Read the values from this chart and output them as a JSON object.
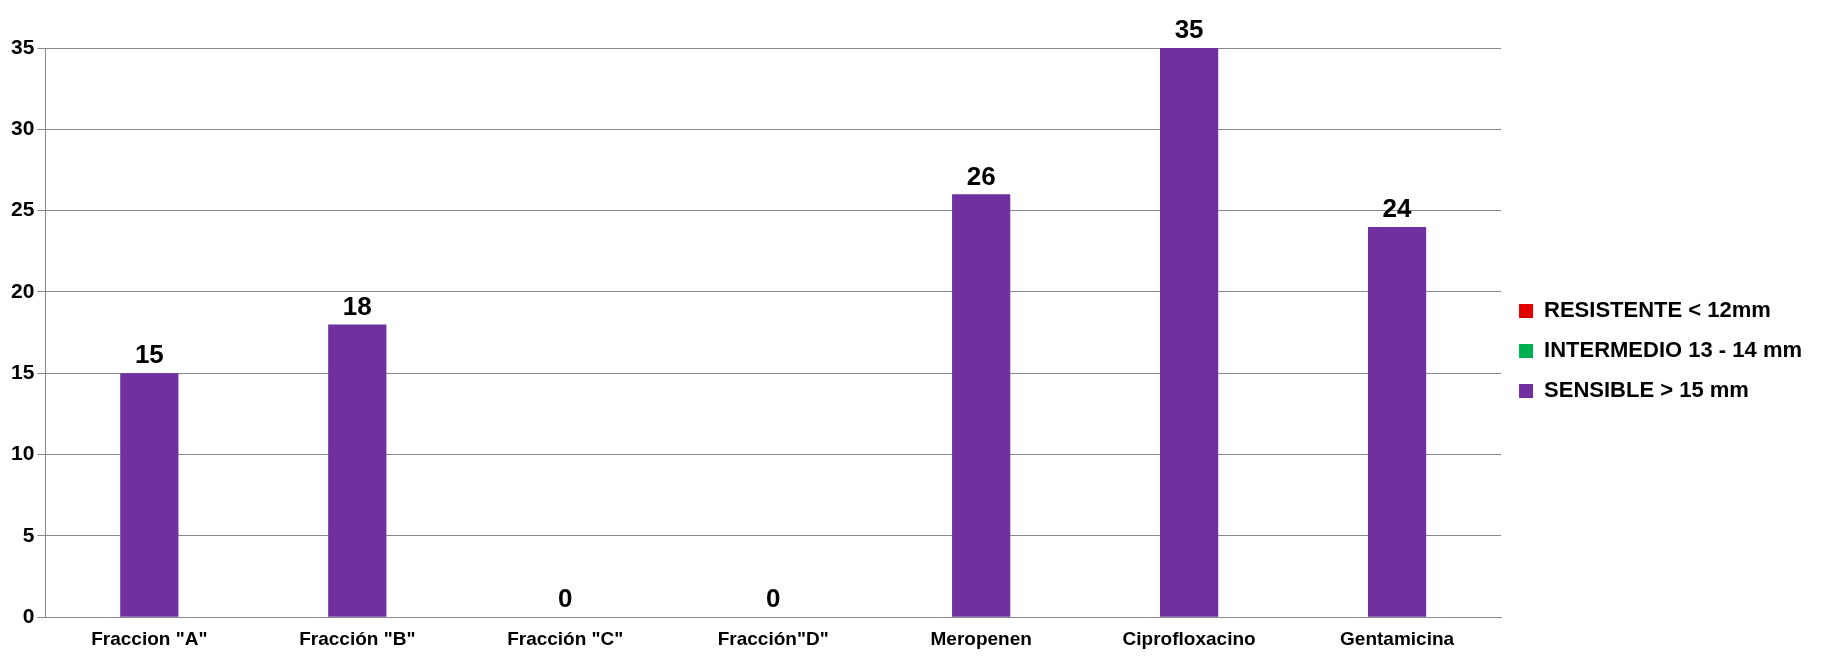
{
  "chart_data": {
    "type": "bar",
    "stacked": true,
    "categories": [
      "Fraccion \"A\"",
      "Fracción \"B\"",
      "Fracción \"C\"",
      "Fracción\"D\"",
      "Meropenen",
      "Ciprofloxacino",
      "Gentamicina"
    ],
    "series": [
      {
        "name": "RESISTENTE < 12mm",
        "color": "#e00000",
        "values": [
          null,
          null,
          0,
          0,
          null,
          null,
          null
        ]
      },
      {
        "name": "INTERMEDIO 13 - 14 mm",
        "color": "#00b050",
        "values": [
          null,
          null,
          null,
          null,
          null,
          null,
          null
        ]
      },
      {
        "name": "SENSIBLE > 15 mm",
        "color": "#7030a0",
        "values": [
          15,
          18,
          null,
          null,
          26,
          35,
          24
        ]
      }
    ],
    "ylim": [
      0,
      35
    ],
    "yticks": [
      0,
      5,
      10,
      15,
      20,
      25,
      30,
      35
    ],
    "grid": "y",
    "legend": "right",
    "data_labels": true
  }
}
